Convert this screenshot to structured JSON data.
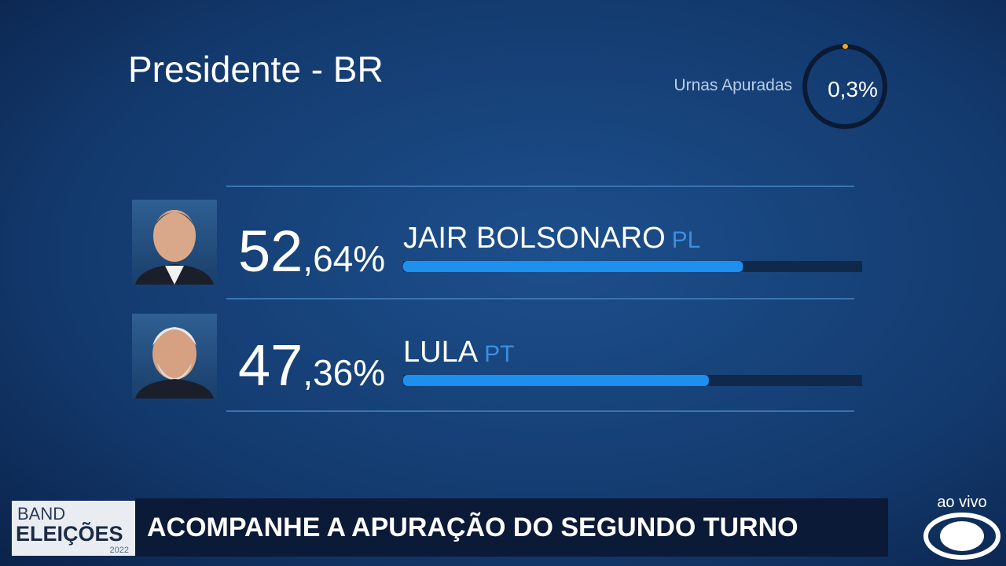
{
  "header": {
    "title": "Presidente - BR"
  },
  "counted": {
    "label": "Urnas Apuradas",
    "value": 0.3,
    "value_label": "0,3%"
  },
  "candidates": [
    {
      "name": "JAIR BOLSONARO",
      "party": "PL",
      "value": 52.64,
      "percent_int": "52",
      "percent_dec": ",64%"
    },
    {
      "name": "LULA",
      "party": "PT",
      "value": 47.36,
      "percent_int": "47",
      "percent_dec": ",36%"
    }
  ],
  "banner": {
    "logo_top": "BAND",
    "logo_main": "ELEIÇÕES",
    "logo_year": "2022",
    "headline": "ACOMPANHE A APURAÇÃO DO SEGUNDO TURNO",
    "live": "ao vivo"
  }
}
